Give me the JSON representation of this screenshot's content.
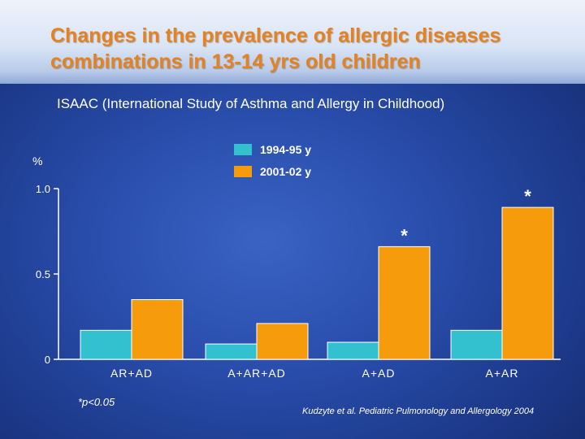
{
  "slide": {
    "title_line1": "Changes in the prevalence of allergic diseases",
    "title_line2": "combinations in 13-14 yrs old children",
    "subtitle": "ISAAC (International Study of Asthma and Allergy in Childhood)",
    "footnote": "*p<0.05",
    "source": "Kudzyte et al. Pediatric Pulmonology and Allergology 2004"
  },
  "colors": {
    "series_1994": "#33c1cf",
    "series_2001": "#f59b0c",
    "title": "#e6811e"
  },
  "chart_data": {
    "type": "bar",
    "title": "",
    "xlabel": "",
    "ylabel": "%",
    "ylim": [
      0,
      1.0
    ],
    "yticks": [
      {
        "value": 0,
        "label": "0"
      },
      {
        "value": 0.5,
        "label": "0.5"
      },
      {
        "value": 1.0,
        "label": "1.0"
      }
    ],
    "categories": [
      "AR+AD",
      "A+AR+AD",
      "A+AD",
      "A+AR"
    ],
    "series": [
      {
        "name": "1994-95 y",
        "values": [
          0.17,
          0.09,
          0.1,
          0.17
        ]
      },
      {
        "name": "2001-02 y",
        "values": [
          0.35,
          0.21,
          0.66,
          0.89
        ]
      }
    ],
    "significance": [
      {
        "category": "A+AD",
        "label": "*"
      },
      {
        "category": "A+AR",
        "label": "*"
      }
    ],
    "grid": false,
    "legend_position": "top-center"
  }
}
